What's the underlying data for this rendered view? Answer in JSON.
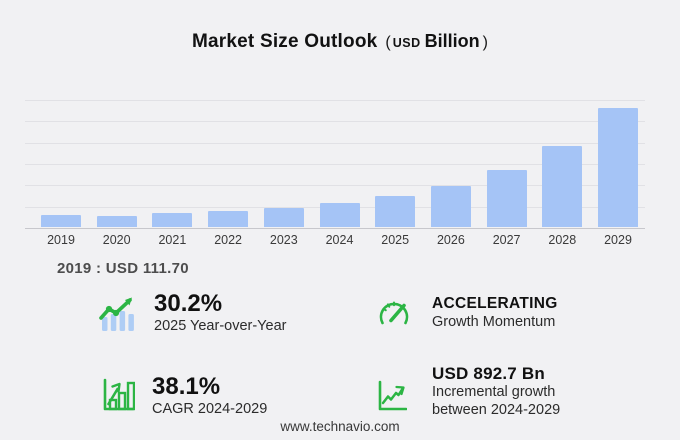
{
  "title": {
    "main": "Market Size Outlook",
    "paren_open": "(",
    "currency": "USD",
    "unit": "Billion",
    "paren_close": ")"
  },
  "chart_data": {
    "type": "bar",
    "title": "Market Size Outlook (USD Billion)",
    "xlabel": "",
    "ylabel": "USD Billion",
    "categories": [
      "2019",
      "2020",
      "2021",
      "2022",
      "2023",
      "2024",
      "2025",
      "2026",
      "2027",
      "2028",
      "2029"
    ],
    "values": [
      111.7,
      107.0,
      128.0,
      150.0,
      175.0,
      222.3,
      289.4,
      387.9,
      535.3,
      760.1,
      1115.0
    ],
    "ylim": [
      0,
      1200
    ],
    "gridline_step": 200,
    "grid": true,
    "y_tick_labels_visible": false,
    "legend": "none",
    "bar_color": "#a5c4f6",
    "annotation": "2019 : USD  111.70"
  },
  "annotation": "2019 : USD  111.70",
  "stats": {
    "yoy": {
      "icon": "bar-chart-trend-icon",
      "value": "30.2%",
      "label": "2025 Year-over-Year"
    },
    "momentum": {
      "icon": "speedometer-icon",
      "value": "ACCELERATING",
      "label": "Growth Momentum"
    },
    "cagr": {
      "icon": "boxed-bar-growth-icon",
      "value": "38.1%",
      "label": "CAGR 2024-2029"
    },
    "incremental": {
      "icon": "growth-axes-icon",
      "value": "USD 892.7 Bn",
      "label_line1": "Incremental growth",
      "label_line2": "between 2024-2029"
    }
  },
  "footer": {
    "website": "www.technavio.com"
  },
  "colors": {
    "background": "#f1f1f3",
    "bar": "#a5c4f6",
    "icon_bar_blue": "#aecdf5",
    "green": "#2cb544",
    "gridline": "#e1e1e5",
    "axis_line": "#c7c7cc"
  }
}
